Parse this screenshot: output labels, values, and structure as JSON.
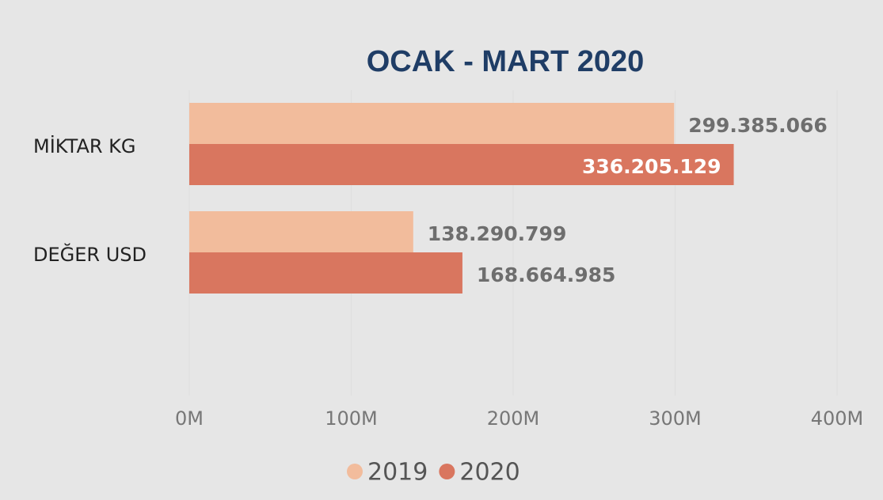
{
  "chart_data": {
    "type": "barh",
    "title": "OCAK - MART 2020",
    "categories": [
      "MİKTAR KG",
      "DEĞER USD"
    ],
    "series": [
      {
        "name": "2019",
        "color": "#f2bc9c",
        "values": [
          299385066,
          138290799
        ],
        "value_labels": [
          "299.385.066",
          "138.290.799"
        ]
      },
      {
        "name": "2020",
        "color": "#d9765f",
        "values": [
          336205129,
          168664985
        ],
        "value_labels": [
          "336.205.129",
          "168.664.985"
        ]
      }
    ],
    "xlim": [
      0,
      400000000
    ],
    "xticks": [
      {
        "value": 0,
        "label": "0M"
      },
      {
        "value": 100000000,
        "label": "100M"
      },
      {
        "value": 200000000,
        "label": "200M"
      },
      {
        "value": 300000000,
        "label": "300M"
      },
      {
        "value": 400000000,
        "label": "400M"
      }
    ],
    "grid": true,
    "legend": "bottom"
  }
}
